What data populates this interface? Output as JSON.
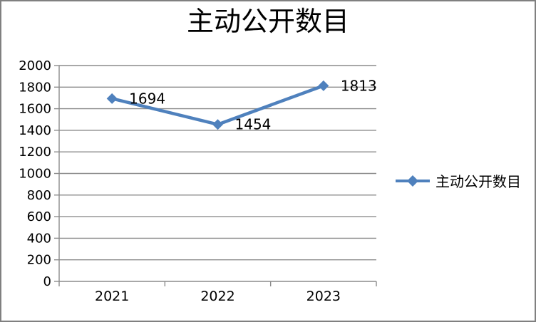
{
  "chart_data": {
    "type": "line",
    "title": "主动公开数目",
    "categories": [
      "2021",
      "2022",
      "2023"
    ],
    "series": [
      {
        "name": "主动公开数目",
        "values": [
          1694,
          1454,
          1813
        ]
      }
    ],
    "data_labels": [
      "1694",
      "1454",
      "1813"
    ],
    "ylim": [
      0,
      2000
    ],
    "ytick_step": 200,
    "ytick_labels": [
      "0",
      "200",
      "400",
      "600",
      "800",
      "1000",
      "1200",
      "1400",
      "1600",
      "1800",
      "2000"
    ],
    "grid": true,
    "legend_position": "right",
    "xlabel": "",
    "ylabel": "",
    "colors": {
      "line": "#4F81BD",
      "marker": "#4F81BD",
      "grid": "#8C8C8C",
      "axis": "#8C8C8C",
      "text": "#000000",
      "border": "#808080",
      "background": "#FFFFFF"
    }
  }
}
